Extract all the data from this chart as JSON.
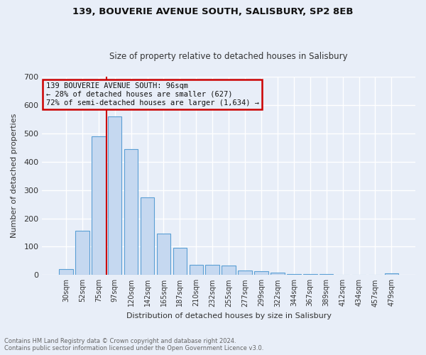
{
  "title1": "139, BOUVERIE AVENUE SOUTH, SALISBURY, SP2 8EB",
  "title2": "Size of property relative to detached houses in Salisbury",
  "xlabel": "Distribution of detached houses by size in Salisbury",
  "ylabel": "Number of detached properties",
  "categories": [
    "30sqm",
    "52sqm",
    "75sqm",
    "97sqm",
    "120sqm",
    "142sqm",
    "165sqm",
    "187sqm",
    "210sqm",
    "232sqm",
    "255sqm",
    "277sqm",
    "299sqm",
    "322sqm",
    "344sqm",
    "367sqm",
    "389sqm",
    "412sqm",
    "434sqm",
    "457sqm",
    "479sqm"
  ],
  "values": [
    22,
    155,
    490,
    560,
    445,
    275,
    145,
    97,
    37,
    35,
    33,
    15,
    13,
    9,
    4,
    3,
    3,
    0,
    0,
    0,
    6
  ],
  "bar_color": "#c5d8f0",
  "bar_edge_color": "#5a9fd4",
  "vline_color": "#cc0000",
  "annotation_box_text": "139 BOUVERIE AVENUE SOUTH: 96sqm\n← 28% of detached houses are smaller (627)\n72% of semi-detached houses are larger (1,634) →",
  "annotation_box_color": "#cc0000",
  "background_color": "#e8eef8",
  "grid_color": "#ffffff",
  "footnote": "Contains HM Land Registry data © Crown copyright and database right 2024.\nContains public sector information licensed under the Open Government Licence v3.0.",
  "ylim": [
    0,
    700
  ],
  "yticks": [
    0,
    100,
    200,
    300,
    400,
    500,
    600,
    700
  ]
}
